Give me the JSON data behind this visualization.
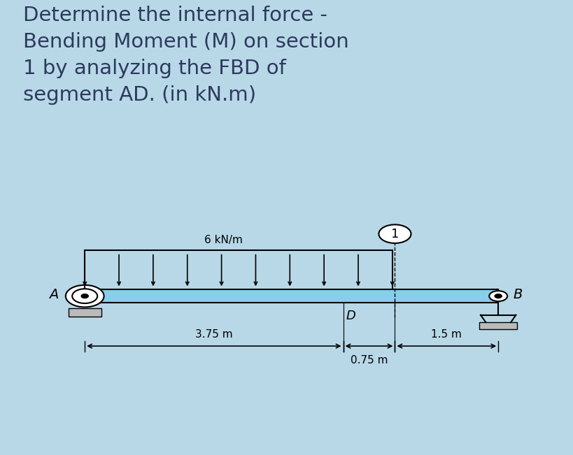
{
  "bg_color": "#b8d8e8",
  "diagram_bg": "#ffffff",
  "title_text": "Determine the internal force -\nBending Moment (M) on section\n1 by analyzing the FBD of\nsegment AD. (in kN.m)",
  "title_color": "#2d3a5c",
  "title_fontsize": 21,
  "beam_color": "#87ceeb",
  "beam_outline": "#000000",
  "label_A": "A",
  "label_B": "B",
  "label_D": "D",
  "label_1": "1",
  "dist_load_label": "6 kN/m",
  "dim1_label": "3.75 m",
  "dim2_label": "0.75 m",
  "dim3_label": "1.5 m",
  "support_color": "#bbbbbb",
  "text_color": "#000000",
  "n_load_arrows": 10
}
